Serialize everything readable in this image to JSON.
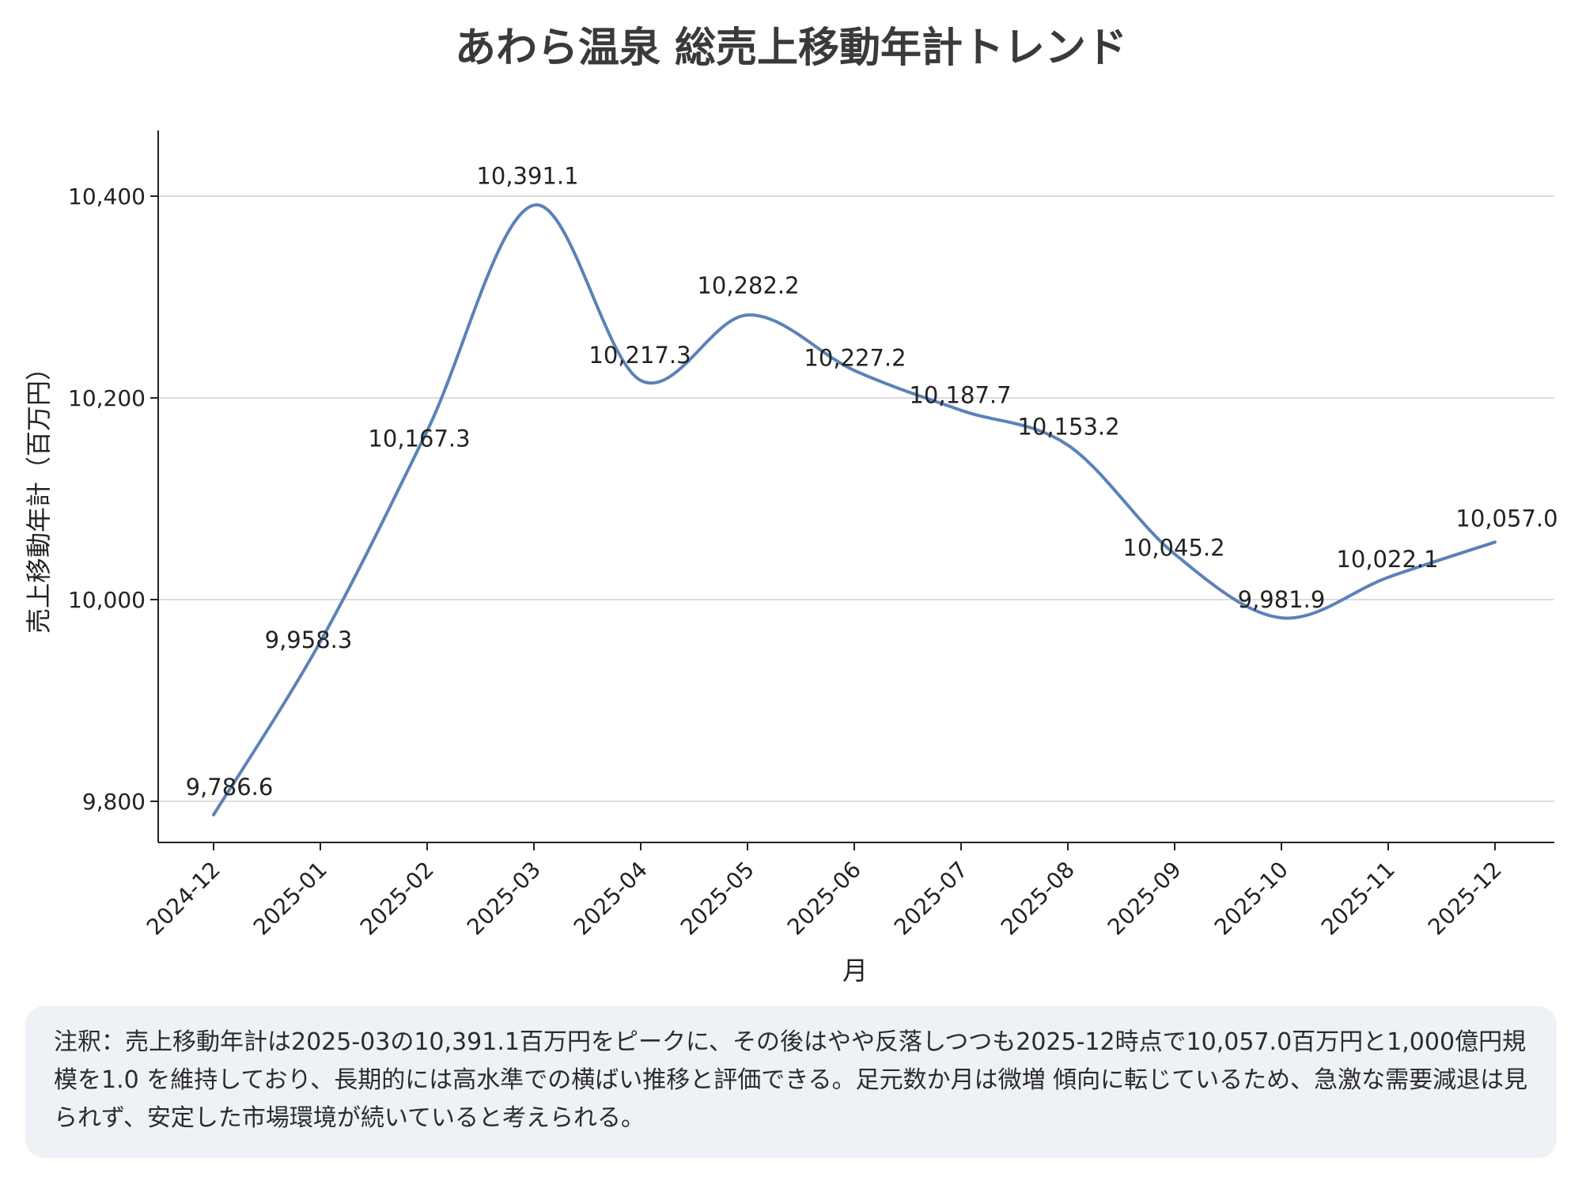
{
  "chart_data": {
    "type": "line",
    "title": "あわら温泉 総売上移動年計トレンド",
    "xlabel": "月",
    "ylabel": "売上移動年計（百万円）",
    "categories": [
      "2024-12",
      "2025-01",
      "2025-02",
      "2025-03",
      "2025-04",
      "2025-05",
      "2025-06",
      "2025-07",
      "2025-08",
      "2025-09",
      "2025-10",
      "2025-11",
      "2025-12"
    ],
    "series": [
      {
        "name": "売上移動年計",
        "color": "#5b82b8",
        "values": [
          9786.6,
          9958.3,
          10167.3,
          10391.1,
          10217.3,
          10282.2,
          10227.2,
          10187.7,
          10153.2,
          10045.2,
          9981.9,
          10022.1,
          10057.0
        ]
      }
    ],
    "data_labels": [
      "9,786.6",
      "9,958.3",
      "10,167.3",
      "10,391.1",
      "10,217.3",
      "10,282.2",
      "10,227.2",
      "10,187.7",
      "10,153.2",
      "10,045.2",
      "9,981.9",
      "10,022.1",
      "10,057.0"
    ],
    "yticks": [
      9800,
      10000,
      10200,
      10400
    ],
    "ytick_labels": [
      "9,800",
      "10,000",
      "10,200",
      "10,400"
    ],
    "ylim": [
      9760,
      10460
    ],
    "grid": true,
    "grid_color": "#dddddd"
  },
  "note": {
    "text": "注釈：売上移動年計は2025-03の10,391.1百万円をピークに、その後はやや反落しつつも2025-12時点で10,057.0百万円と1,000億円規模を1.0 を維持しており、長期的には高水準での横ばい推移と評価できる。足元数か月は微増 傾向に転じているため、急激な需要減退は見られず、安定した市場環境が続いていると考えられる。"
  }
}
